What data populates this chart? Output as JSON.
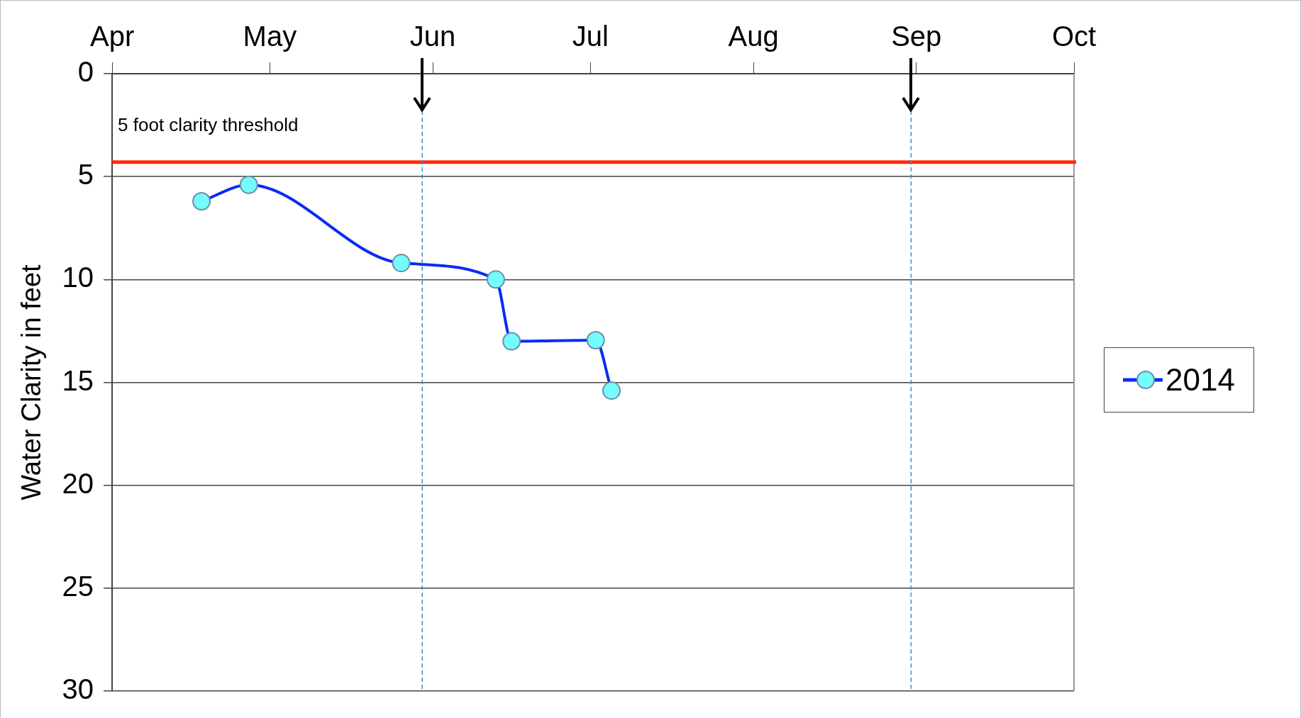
{
  "chart_data": {
    "type": "line",
    "ylabel": "Water Clarity in feet",
    "x": [
      "--04-18",
      "--04-27",
      "--05-26",
      "--06-13",
      "--06-16",
      "--07-02",
      "--07-05"
    ],
    "series": [
      {
        "name": "2014",
        "color": "#0a2cf5",
        "values": [
          6.2,
          5.4,
          9.2,
          10.0,
          13.0,
          12.95,
          15.4
        ]
      }
    ],
    "xlim": [
      "--04-01",
      "--10-01"
    ],
    "xticks": [
      {
        "value": "--04-01",
        "label": "Apr"
      },
      {
        "value": "--05-01",
        "label": "May"
      },
      {
        "value": "--06-01",
        "label": "Jun"
      },
      {
        "value": "--07-01",
        "label": "Jul"
      },
      {
        "value": "--08-01",
        "label": "Aug"
      },
      {
        "value": "--09-01",
        "label": "Sep"
      },
      {
        "value": "--10-01",
        "label": "Oct"
      }
    ],
    "ylim": [
      30,
      0
    ],
    "yticks": [
      0,
      5,
      10,
      15,
      20,
      25,
      30
    ],
    "ref_lines": [
      {
        "axis": "y",
        "value": 4.3,
        "label": "5 foot clarity threshold",
        "color": "#ff2a0a",
        "line_style": "solid"
      },
      {
        "axis": "x",
        "value": "--05-30",
        "color": "#3a8fd0",
        "line_style": "dashed"
      },
      {
        "axis": "x",
        "value": "--08-31",
        "color": "#3a8fd0",
        "line_style": "dashed"
      }
    ],
    "grid": "y",
    "legend": "right",
    "marker": "circle",
    "line_style": "solid"
  }
}
